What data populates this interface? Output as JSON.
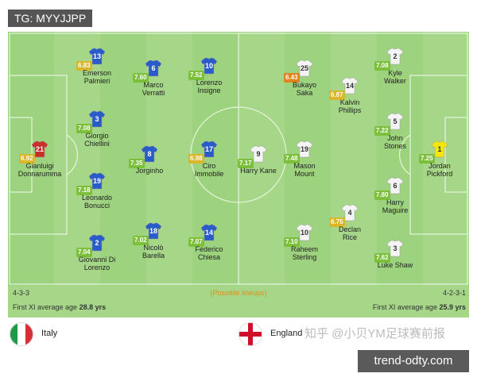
{
  "watermark": "TG: MYYJJPP",
  "pitch_note": "(Possible lineups)",
  "teams": [
    {
      "name": "Italy",
      "formation": "4-3-3",
      "avg_age_label": "First XI average age",
      "avg_age": "28.8 yrs",
      "kit": "#2a5cc9",
      "number_color": "#ffffff",
      "players": [
        {
          "number": 21,
          "rating": "6.92",
          "name": "Gianluigi\nDonnarumma",
          "kit": "#c9302c"
        },
        {
          "number": 13,
          "rating": "6.83",
          "name": "Emerson\nPalmieri"
        },
        {
          "number": 3,
          "rating": "7.08",
          "name": "Giorgio\nChiellini"
        },
        {
          "number": 19,
          "rating": "7.18",
          "name": "Leonardo\nBonucci"
        },
        {
          "number": 2,
          "rating": "7.04",
          "name": "Giovanni Di\nLorenzo"
        },
        {
          "number": 6,
          "rating": "7.60",
          "name": "Marco\nVerratti"
        },
        {
          "number": 8,
          "rating": "7.35",
          "name": "Jorginho"
        },
        {
          "number": 18,
          "rating": "7.02",
          "name": "Nicolò\nBarella"
        },
        {
          "number": 10,
          "rating": "7.52",
          "name": "Lorenzo\nInsigne"
        },
        {
          "number": 17,
          "rating": "6.98",
          "name": "Ciro\nImmobile"
        },
        {
          "number": 14,
          "rating": "7.07",
          "name": "Federico\nChiesa"
        }
      ]
    },
    {
      "name": "England",
      "formation": "4-2-3-1",
      "avg_age_label": "First XI average age",
      "avg_age": "25.9 yrs",
      "kit": "#f4f4f4",
      "number_color": "#333333",
      "players": [
        {
          "number": 1,
          "rating": "7.25",
          "name": "Jordan\nPickford",
          "kit": "#f2e60c"
        },
        {
          "number": 2,
          "rating": "7.08",
          "name": "Kyle\nWalker"
        },
        {
          "number": 5,
          "rating": "7.22",
          "name": "John\nStones"
        },
        {
          "number": 6,
          "rating": "7.80",
          "name": "Harry\nMaguire"
        },
        {
          "number": 3,
          "rating": "7.62",
          "name": "Luke Shaw"
        },
        {
          "number": 14,
          "rating": "6.87",
          "name": "Kalvin\nPhillips"
        },
        {
          "number": 4,
          "rating": "6.75",
          "name": "Declan\nRice"
        },
        {
          "number": 25,
          "rating": "6.43",
          "name": "Bukayo\nSaka"
        },
        {
          "number": 19,
          "rating": "7.48",
          "name": "Mason\nMount"
        },
        {
          "number": 10,
          "rating": "7.10",
          "name": "Raheem\nSterling"
        },
        {
          "number": 9,
          "rating": "7.17",
          "name": "Harry Kane"
        }
      ]
    }
  ],
  "footer_watermark": "知乎 @小贝YM足球赛前报",
  "site": "trend-odty.com"
}
